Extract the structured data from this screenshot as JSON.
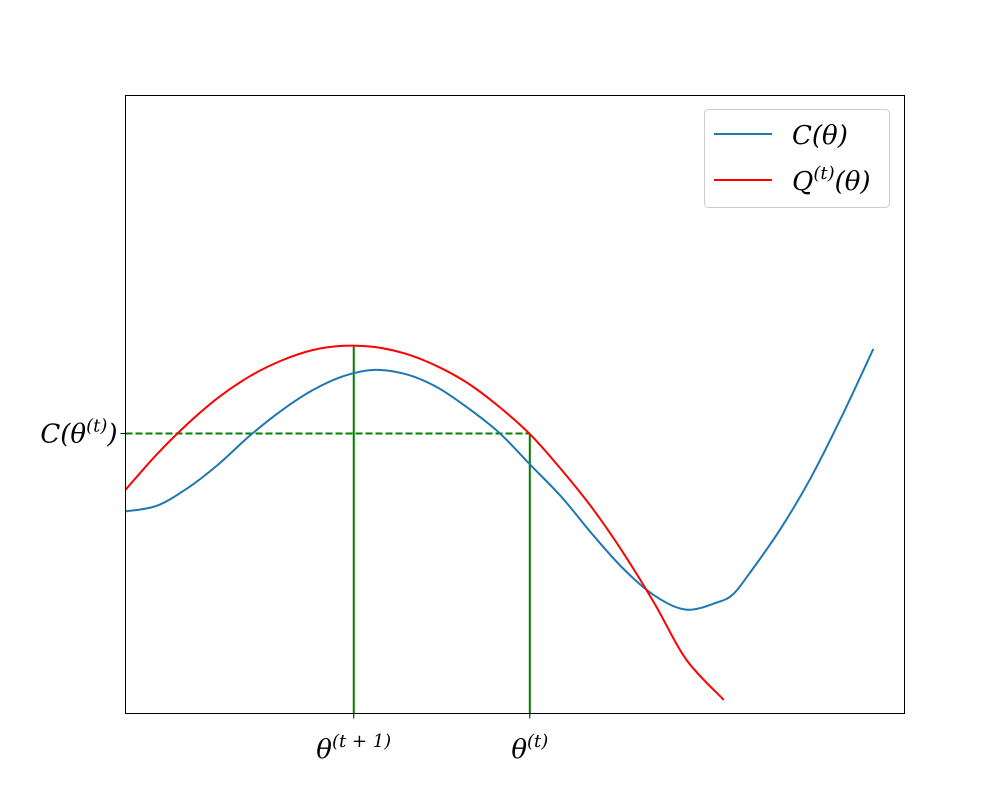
{
  "chart_data": {
    "type": "line",
    "title": "",
    "xlabel": "",
    "ylabel": "",
    "xlim": [
      0,
      1
    ],
    "ylim": [
      0,
      1
    ],
    "grid": false,
    "legend": "top-right",
    "x_ticks": [
      {
        "value": 0.293,
        "label": "θ(t + 1)",
        "base": "θ",
        "sup": "(t + 1)"
      },
      {
        "value": 0.519,
        "label": "θ(t)",
        "base": "θ",
        "sup": "(t)"
      }
    ],
    "y_ticks": [
      {
        "value": 0.453,
        "label": "C(θ(t))",
        "base": "C(θ",
        "sup": "(t)",
        "tail": ")"
      }
    ],
    "series": [
      {
        "name": "C(θ)",
        "name_base": "C(θ)",
        "name_sup": "",
        "name_tail": "",
        "color": "#1f77b4",
        "x": [
          0.0,
          0.04,
          0.08,
          0.12,
          0.16,
          0.2,
          0.24,
          0.28,
          0.32,
          0.36,
          0.4,
          0.44,
          0.48,
          0.52,
          0.56,
          0.6,
          0.64,
          0.68,
          0.72,
          0.76,
          0.78,
          0.8,
          0.84,
          0.88,
          0.92,
          0.96
        ],
        "y": [
          0.327,
          0.336,
          0.365,
          0.404,
          0.45,
          0.49,
          0.523,
          0.546,
          0.556,
          0.549,
          0.528,
          0.494,
          0.454,
          0.402,
          0.35,
          0.289,
          0.233,
          0.19,
          0.168,
          0.18,
          0.193,
          0.225,
          0.297,
          0.382,
          0.482,
          0.59
        ]
      },
      {
        "name": "Q(t)(θ)",
        "name_base": "Q",
        "name_sup": "(t)",
        "name_tail": "(θ)",
        "color": "#ff0000",
        "x": [
          0.0,
          0.04,
          0.08,
          0.12,
          0.16,
          0.2,
          0.24,
          0.28,
          0.32,
          0.36,
          0.4,
          0.44,
          0.48,
          0.52,
          0.56,
          0.6,
          0.64,
          0.68,
          0.72,
          0.768
        ],
        "y": [
          0.362,
          0.419,
          0.469,
          0.512,
          0.546,
          0.571,
          0.588,
          0.595,
          0.593,
          0.582,
          0.562,
          0.534,
          0.496,
          0.451,
          0.394,
          0.331,
          0.258,
          0.176,
          0.087,
          0.022
        ]
      }
    ],
    "guides": [
      {
        "kind": "vertical",
        "x": 0.293,
        "y_from": 0.0,
        "y_to": 0.595,
        "color": "#008000",
        "style": "solid"
      },
      {
        "kind": "vertical",
        "x": 0.519,
        "y_from": 0.0,
        "y_to": 0.453,
        "color": "#008000",
        "style": "solid"
      },
      {
        "kind": "horizontal",
        "y": 0.453,
        "x_from": 0.0,
        "x_to": 0.519,
        "color": "#008000",
        "style": "dashed"
      }
    ]
  }
}
